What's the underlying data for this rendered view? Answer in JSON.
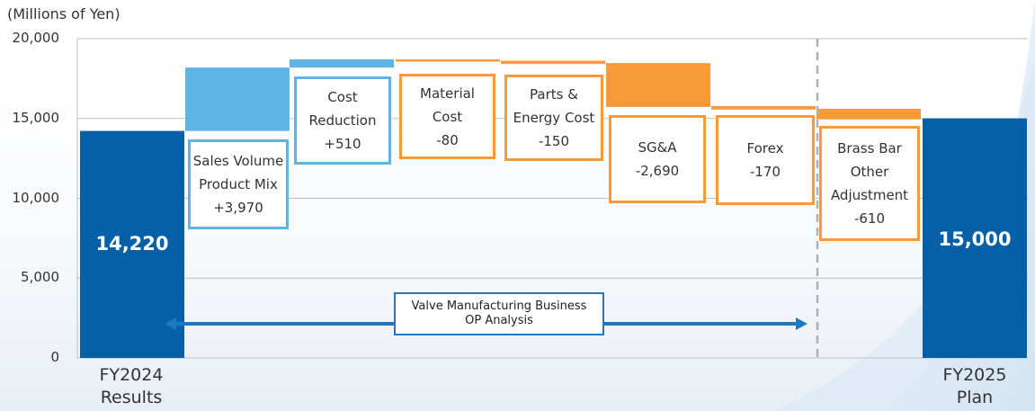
{
  "chart_data": {
    "type": "bar",
    "subtype": "waterfall",
    "unit_label": "(Millions of Yen)",
    "yticks": [
      "0",
      "5,000",
      "10,000",
      "15,000",
      "20,000"
    ],
    "ylim": [
      0,
      20000
    ],
    "grid": true,
    "start": {
      "label": [
        "FY2024",
        "Results"
      ],
      "value": 14220,
      "display": "14,220"
    },
    "end": {
      "label": [
        "FY2025",
        "Plan"
      ],
      "value": 15000,
      "display": "15,000"
    },
    "steps": [
      {
        "lines": [
          "Sales Volume",
          "Product Mix",
          "+3,970"
        ],
        "value": 3970,
        "kind": "increase"
      },
      {
        "lines": [
          "Cost",
          "Reduction",
          "+510"
        ],
        "value": 510,
        "kind": "increase"
      },
      {
        "lines": [
          "Material",
          "Cost",
          "-80"
        ],
        "value": -80,
        "kind": "decrease"
      },
      {
        "lines": [
          "Parts &",
          "Energy Cost",
          "-150"
        ],
        "value": -150,
        "kind": "decrease"
      },
      {
        "lines": [
          "SG&A",
          "-2,690"
        ],
        "value": -2690,
        "kind": "decrease"
      },
      {
        "lines": [
          "Forex",
          "-170"
        ],
        "value": -170,
        "kind": "decrease"
      },
      {
        "lines": [
          "Brass Bar",
          "Other",
          "Adjustment",
          "-610"
        ],
        "value": -610,
        "kind": "decrease"
      }
    ],
    "annotation": [
      "Valve Manufacturing Business",
      "OP Analysis"
    ],
    "colors": {
      "total": "#0560a8",
      "increase": "#5fb3e5",
      "decrease": "#f8993a",
      "arrow": "#1f78c0",
      "grid": "#bfbfbf",
      "divider": "#b0b0b0"
    }
  }
}
